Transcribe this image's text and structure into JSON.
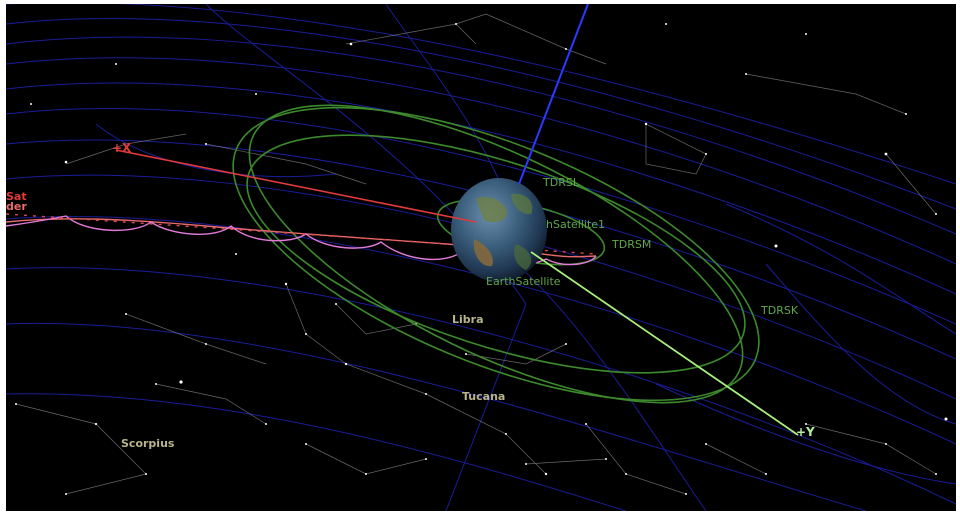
{
  "view": {
    "constellations": [
      "Scorpius",
      "Tucana",
      "Libra"
    ],
    "satellites": [
      "TDRSL",
      "hSatellite1",
      "TDRSM",
      "TDRSK",
      "EarthSatellite"
    ],
    "axes": {
      "x": "+X",
      "y": "+Y"
    },
    "clipped_labels": [
      "Sat",
      "der"
    ],
    "colors": {
      "background": "#000000",
      "grid": "#1c1fa0",
      "orbit": "#3c8a2c",
      "x_axis": "#e03a3a",
      "y_axis": "#a8f07c",
      "z_axis": "#2a3aff",
      "ground_track": "#e27ad8"
    }
  }
}
